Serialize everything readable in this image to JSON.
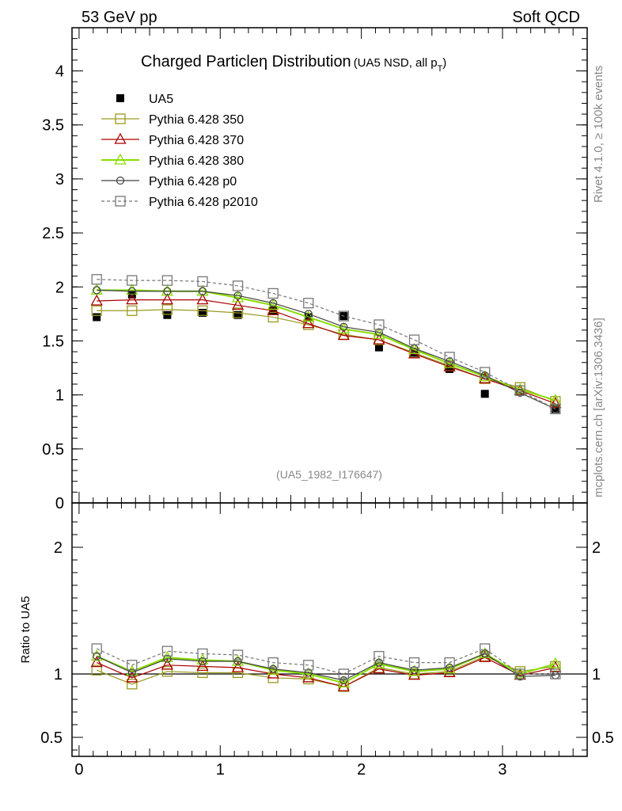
{
  "header": {
    "left": "53 GeV pp",
    "right": "Soft QCD"
  },
  "side": {
    "rivet": "Rivet 4.1.0, ≥ 100k events",
    "mcplots": "mcplots.cern.ch [arXiv:1306.3436]"
  },
  "title": {
    "main": "Charged Particleη Distribution",
    "sub_a": "(UA5 NSD, all p",
    "sub_b": "T",
    "sub_c": ")"
  },
  "analysis_id": "(UA5_1982_I176647)",
  "colors": {
    "data": "#000000",
    "p350": "#9a9a20",
    "p370": "#aa0000",
    "p380": "#88dd00",
    "p0": "#404040",
    "p2010": "#777777"
  },
  "chart_data": [
    {
      "type": "line",
      "panel": "main",
      "title": "Charged Particleη Distribution (UA5 NSD, all pT)",
      "xlabel": "",
      "ylabel": "",
      "xlim": [
        -0.05,
        3.6
      ],
      "ylim": [
        0,
        4.4
      ],
      "yticks": [
        0,
        0.5,
        1,
        1.5,
        2,
        2.5,
        3,
        3.5,
        4
      ],
      "yticklabels": [
        "0",
        "0.5",
        "1",
        "1.5",
        "2",
        "2.5",
        "3",
        "3.5",
        "4"
      ],
      "x": [
        0.125,
        0.375,
        0.625,
        0.875,
        1.125,
        1.375,
        1.625,
        1.875,
        2.125,
        2.375,
        2.625,
        2.875,
        3.125,
        3.375
      ],
      "series": [
        {
          "name": "UA5",
          "key": "data",
          "marker": "filled-square",
          "values": [
            1.72,
            1.93,
            1.74,
            1.76,
            1.74,
            1.78,
            1.72,
            1.73,
            1.44,
            1.39,
            1.24,
            1.01,
            null,
            0.87
          ]
        },
        {
          "name": "Pythia 6.428 350",
          "key": "p350",
          "marker": "open-square",
          "values": [
            1.78,
            1.78,
            1.79,
            1.78,
            1.76,
            1.72,
            1.65,
            1.56,
            1.51,
            1.39,
            1.27,
            1.15,
            1.07,
            0.94
          ]
        },
        {
          "name": "Pythia 6.428 370",
          "key": "p370",
          "marker": "open-triangle",
          "values": [
            1.87,
            1.88,
            1.88,
            1.88,
            1.83,
            1.78,
            1.66,
            1.55,
            1.51,
            1.38,
            1.26,
            1.15,
            1.04,
            0.92
          ]
        },
        {
          "name": "Pythia 6.428 380",
          "key": "p380",
          "marker": "open-triangle",
          "values": [
            1.97,
            1.97,
            1.96,
            1.96,
            1.9,
            1.83,
            1.72,
            1.61,
            1.56,
            1.42,
            1.29,
            1.17,
            1.05,
            0.95
          ]
        },
        {
          "name": "Pythia 6.428 p0",
          "key": "p0",
          "marker": "open-circle",
          "values": [
            1.97,
            1.96,
            1.96,
            1.96,
            1.92,
            1.85,
            1.75,
            1.63,
            1.58,
            1.43,
            1.31,
            1.18,
            1.02,
            0.87
          ]
        },
        {
          "name": "Pythia 6.428 p2010",
          "key": "p2010",
          "marker": "open-square",
          "dashed": true,
          "values": [
            2.07,
            2.06,
            2.06,
            2.05,
            2.01,
            1.94,
            1.85,
            1.73,
            1.65,
            1.51,
            1.35,
            1.21,
            1.04,
            0.87
          ]
        }
      ]
    },
    {
      "type": "line",
      "panel": "ratio",
      "xlabel": "",
      "ylabel": "Ratio to UA5",
      "xlim": [
        -0.05,
        3.6
      ],
      "ylim": [
        0.35,
        2.35
      ],
      "xticks": [
        0,
        1,
        2,
        3
      ],
      "xticklabels": [
        "0",
        "1",
        "2",
        "3"
      ],
      "yticks": [
        0.5,
        1,
        2
      ],
      "yticklabels": [
        "0.5",
        "1",
        "2"
      ],
      "x": [
        0.125,
        0.375,
        0.625,
        0.875,
        1.125,
        1.375,
        1.625,
        1.875,
        2.125,
        2.375,
        2.625,
        2.875,
        3.125,
        3.375
      ],
      "series": [
        {
          "name": "Pythia 6.428 350",
          "key": "p350",
          "marker": "open-square",
          "values": [
            1.03,
            0.92,
            1.02,
            1.01,
            1.01,
            0.97,
            0.96,
            0.9,
            1.05,
            1.0,
            1.02,
            1.14,
            1.02,
            1.06
          ]
        },
        {
          "name": "Pythia 6.428 370",
          "key": "p370",
          "marker": "open-triangle",
          "values": [
            1.09,
            0.97,
            1.07,
            1.06,
            1.05,
            1.0,
            0.97,
            0.9,
            1.04,
            0.99,
            1.01,
            1.13,
            0.99,
            1.05
          ]
        },
        {
          "name": "Pythia 6.428 380",
          "key": "p380",
          "marker": "open-triangle",
          "values": [
            1.14,
            1.02,
            1.13,
            1.11,
            1.1,
            1.03,
            1.0,
            0.93,
            1.08,
            1.02,
            1.04,
            1.16,
            1.0,
            1.08
          ]
        },
        {
          "name": "Pythia 6.428 p0",
          "key": "p0",
          "marker": "open-circle",
          "values": [
            1.14,
            1.01,
            1.12,
            1.1,
            1.1,
            1.04,
            1.01,
            0.95,
            1.09,
            1.03,
            1.05,
            1.16,
            0.98,
            0.99
          ]
        },
        {
          "name": "Pythia 6.428 p2010",
          "key": "p2010",
          "marker": "open-square",
          "dashed": true,
          "values": [
            1.2,
            1.07,
            1.18,
            1.16,
            1.15,
            1.09,
            1.07,
            1.0,
            1.14,
            1.09,
            1.09,
            1.2,
            1.0,
            1.0
          ]
        }
      ]
    }
  ]
}
